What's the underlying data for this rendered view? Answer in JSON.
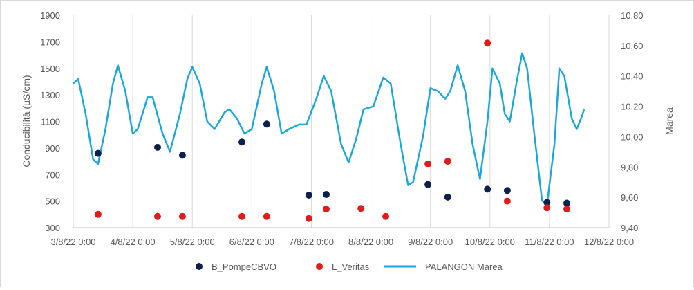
{
  "chart_data": {
    "type": "scatter",
    "x_type": "datetime",
    "x_range": [
      "2022-08-03T00:00",
      "2022-08-12T00:00"
    ],
    "x_ticks": [
      "3/8/22 0:00",
      "4/8/22 0:00",
      "5/8/22 0:00",
      "6/8/22 0:00",
      "7/8/22 0:00",
      "8/8/22 0:00",
      "9/8/22 0:00",
      "10/8/22 0:00",
      "11/8/22 0:00",
      "12/8/22 0:00"
    ],
    "y_left": {
      "label": "Conducibilità (µS/cm)",
      "range": [
        300,
        1900
      ],
      "ticks": [
        "300",
        "500",
        "700",
        "900",
        "1100",
        "1300",
        "1500",
        "1700",
        "1900"
      ]
    },
    "y_right": {
      "label": "Marea",
      "range": [
        9.4,
        10.8
      ],
      "ticks": [
        "9,40",
        "9,60",
        "9,80",
        "10,00",
        "10,20",
        "10,40",
        "10,60",
        "10,80"
      ]
    },
    "grid": "vertical",
    "legend_position": "bottom",
    "series": [
      {
        "name": "B_PompeCBVO",
        "type": "scatter",
        "axis": "left",
        "color": "#0d1f4d",
        "points": [
          [
            "2022-08-03T10:00",
            860
          ],
          [
            "2022-08-04T10:00",
            905
          ],
          [
            "2022-08-04T20:00",
            845
          ],
          [
            "2022-08-05T20:00",
            945
          ],
          [
            "2022-08-06T06:00",
            1080
          ],
          [
            "2022-08-06T23:00",
            545
          ],
          [
            "2022-08-07T06:00",
            550
          ],
          [
            "2022-08-08T23:00",
            625
          ],
          [
            "2022-08-09T07:00",
            530
          ],
          [
            "2022-08-09T23:00",
            590
          ],
          [
            "2022-08-10T07:00",
            580
          ],
          [
            "2022-08-10T23:00",
            490
          ],
          [
            "2022-08-11T07:00",
            485
          ]
        ]
      },
      {
        "name": "L_Veritas",
        "type": "scatter",
        "axis": "left",
        "color": "#e31a1c",
        "points": [
          [
            "2022-08-03T10:00",
            400
          ],
          [
            "2022-08-04T10:00",
            385
          ],
          [
            "2022-08-04T20:00",
            385
          ],
          [
            "2022-08-05T20:00",
            385
          ],
          [
            "2022-08-06T06:00",
            385
          ],
          [
            "2022-08-06T23:00",
            370
          ],
          [
            "2022-08-07T06:00",
            440
          ],
          [
            "2022-08-07T20:00",
            445
          ],
          [
            "2022-08-08T06:00",
            385
          ],
          [
            "2022-08-08T23:00",
            780
          ],
          [
            "2022-08-09T07:00",
            800
          ],
          [
            "2022-08-09T23:00",
            1690
          ],
          [
            "2022-08-10T07:00",
            500
          ],
          [
            "2022-08-10T23:00",
            450
          ],
          [
            "2022-08-11T07:00",
            440
          ]
        ]
      },
      {
        "name": "PALANGON Marea",
        "type": "line",
        "axis": "right",
        "color": "#1aa7dc",
        "points": [
          [
            "2022-08-03T00:00",
            10.35
          ],
          [
            "2022-08-03T02:00",
            10.38
          ],
          [
            "2022-08-03T05:00",
            10.15
          ],
          [
            "2022-08-03T08:00",
            9.85
          ],
          [
            "2022-08-03T10:00",
            9.82
          ],
          [
            "2022-08-03T13:00",
            10.05
          ],
          [
            "2022-08-03T16:00",
            10.35
          ],
          [
            "2022-08-03T18:00",
            10.47
          ],
          [
            "2022-08-03T21:00",
            10.3
          ],
          [
            "2022-08-04T00:00",
            10.02
          ],
          [
            "2022-08-04T02:00",
            10.05
          ],
          [
            "2022-08-04T06:00",
            10.26
          ],
          [
            "2022-08-04T08:00",
            10.26
          ],
          [
            "2022-08-04T12:00",
            10.02
          ],
          [
            "2022-08-04T15:00",
            9.9
          ],
          [
            "2022-08-04T19:00",
            10.15
          ],
          [
            "2022-08-04T22:00",
            10.38
          ],
          [
            "2022-08-05T00:00",
            10.46
          ],
          [
            "2022-08-05T03:00",
            10.35
          ],
          [
            "2022-08-05T06:00",
            10.1
          ],
          [
            "2022-08-05T09:00",
            10.05
          ],
          [
            "2022-08-05T13:00",
            10.16
          ],
          [
            "2022-08-05T15:00",
            10.18
          ],
          [
            "2022-08-05T18:00",
            10.12
          ],
          [
            "2022-08-05T21:00",
            10.02
          ],
          [
            "2022-08-06T00:00",
            10.05
          ],
          [
            "2022-08-06T04:00",
            10.35
          ],
          [
            "2022-08-06T06:00",
            10.46
          ],
          [
            "2022-08-06T09:00",
            10.3
          ],
          [
            "2022-08-06T12:00",
            10.02
          ],
          [
            "2022-08-06T15:00",
            10.05
          ],
          [
            "2022-08-06T19:00",
            10.08
          ],
          [
            "2022-08-06T22:00",
            10.08
          ],
          [
            "2022-08-07T02:00",
            10.25
          ],
          [
            "2022-08-07T05:00",
            10.4
          ],
          [
            "2022-08-07T08:00",
            10.3
          ],
          [
            "2022-08-07T12:00",
            9.95
          ],
          [
            "2022-08-07T15:00",
            9.83
          ],
          [
            "2022-08-07T18:00",
            9.98
          ],
          [
            "2022-08-07T21:00",
            10.18
          ],
          [
            "2022-08-08T01:00",
            10.2
          ],
          [
            "2022-08-08T05:00",
            10.39
          ],
          [
            "2022-08-08T08:00",
            10.35
          ],
          [
            "2022-08-08T12:00",
            9.95
          ],
          [
            "2022-08-08T15:00",
            9.68
          ],
          [
            "2022-08-08T17:00",
            9.7
          ],
          [
            "2022-08-08T21:00",
            10.0
          ],
          [
            "2022-08-09T00:00",
            10.32
          ],
          [
            "2022-08-09T03:00",
            10.3
          ],
          [
            "2022-08-09T06:00",
            10.25
          ],
          [
            "2022-08-09T08:00",
            10.3
          ],
          [
            "2022-08-09T11:00",
            10.47
          ],
          [
            "2022-08-09T14:00",
            10.3
          ],
          [
            "2022-08-09T17:00",
            9.95
          ],
          [
            "2022-08-09T20:00",
            9.72
          ],
          [
            "2022-08-09T23:00",
            10.1
          ],
          [
            "2022-08-10T01:00",
            10.45
          ],
          [
            "2022-08-10T04:00",
            10.35
          ],
          [
            "2022-08-10T06:00",
            10.15
          ],
          [
            "2022-08-10T08:00",
            10.1
          ],
          [
            "2022-08-10T11:00",
            10.38
          ],
          [
            "2022-08-10T13:00",
            10.55
          ],
          [
            "2022-08-10T15:00",
            10.45
          ],
          [
            "2022-08-10T18:00",
            10.0
          ],
          [
            "2022-08-10T21:00",
            9.58
          ],
          [
            "2022-08-10T23:00",
            9.55
          ],
          [
            "2022-08-11T02:00",
            9.95
          ],
          [
            "2022-08-11T04:00",
            10.45
          ],
          [
            "2022-08-11T06:00",
            10.4
          ],
          [
            "2022-08-11T09:00",
            10.12
          ],
          [
            "2022-08-11T11:00",
            10.05
          ],
          [
            "2022-08-11T13:00",
            10.13
          ],
          [
            "2022-08-11T14:00",
            10.18
          ]
        ]
      }
    ]
  }
}
